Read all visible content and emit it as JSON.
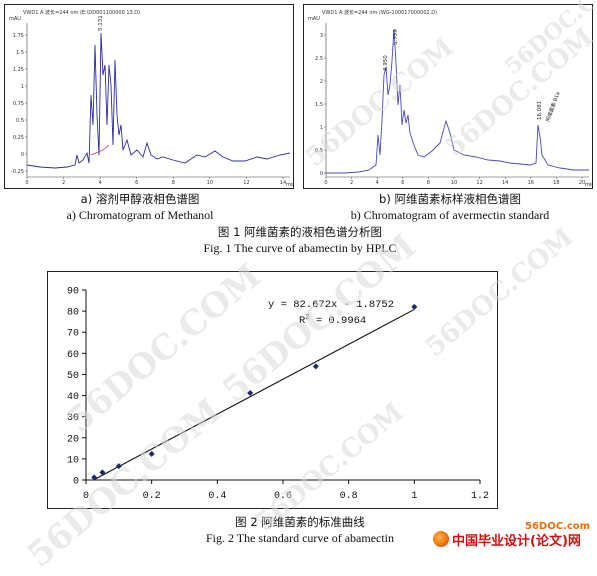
{
  "figure1": {
    "panel_a": {
      "header": "VWD1 A 波长=244 nm (E:\\DD001100000 13.D)",
      "y_unit": "mAU",
      "y_ticks": [
        "1.75",
        "1.5",
        "1.25",
        "1",
        "0.75",
        "0.5",
        "0.25",
        "0",
        "-0.25"
      ],
      "x_ticks": [
        "0",
        "2",
        "4",
        "6",
        "8",
        "10",
        "12",
        "14"
      ],
      "x_unit": "min",
      "peak_labels": [
        "5.131"
      ],
      "caption_zh": "a) 溶剂甲醇液相色谱图",
      "caption_en": "a) Chromatogram of Methanol"
    },
    "panel_b": {
      "header": "VWD1 A 波长=244 nm (WG-100017000002.D)",
      "y_unit": "mAU",
      "y_ticks": [
        "3",
        "2.5",
        "2",
        "1.5",
        "1",
        "0.5",
        "0"
      ],
      "x_ticks": [
        "0",
        "2",
        "4",
        "6",
        "8",
        "10",
        "12",
        "14",
        "16",
        "18",
        "20"
      ],
      "x_unit": "min",
      "peak_labels": [
        "4.950",
        "5.739",
        "16.081",
        "阿维菌素 B1a"
      ],
      "caption_zh": "b) 阿维菌素标样液相色谱图",
      "caption_en": "b) Chromatogram of avermectin standard"
    },
    "caption_zh": "图 1  阿维菌素的液相色谱分析图",
    "caption_en": "Fig. 1 The curve of abamectin by HPLC"
  },
  "figure2": {
    "equation": "y = 82.672x - 1.8752",
    "r2_prefix": "R",
    "r2_sup": "2",
    "r2_value": " = 0.9964",
    "caption_zh": "图 2   阿维菌素的标准曲线",
    "caption_en": "Fig. 2 The standard curve of abamectin"
  },
  "chart_data": {
    "type": "scatter",
    "title": "",
    "xlabel": "",
    "ylabel": "",
    "xlim": [
      0,
      1.2
    ],
    "ylim": [
      0,
      90
    ],
    "x_ticks": [
      "0",
      "0.2",
      "0.4",
      "0.6",
      "0.8",
      "1",
      "1.2"
    ],
    "y_ticks": [
      "0",
      "10",
      "20",
      "30",
      "40",
      "50",
      "60",
      "70",
      "80",
      "90"
    ],
    "grid": false,
    "series": [
      {
        "points": [
          [
            0.025,
            1.2
          ],
          [
            0.05,
            3.6
          ],
          [
            0.1,
            6.6
          ],
          [
            0.2,
            12.4
          ],
          [
            0.5,
            41.2
          ],
          [
            0.7,
            53.8
          ],
          [
            1.0,
            82.0
          ]
        ]
      }
    ],
    "trendline": {
      "slope": 82.672,
      "intercept": -1.8752,
      "r2": 0.9964
    }
  },
  "watermark": {
    "text": "56DOC.COM"
  },
  "brand": {
    "site": "56DOC.com",
    "logo_text": "中国毕业设计(论文)网",
    "color_orange": "#e8710a",
    "color_red": "#cc1111"
  }
}
